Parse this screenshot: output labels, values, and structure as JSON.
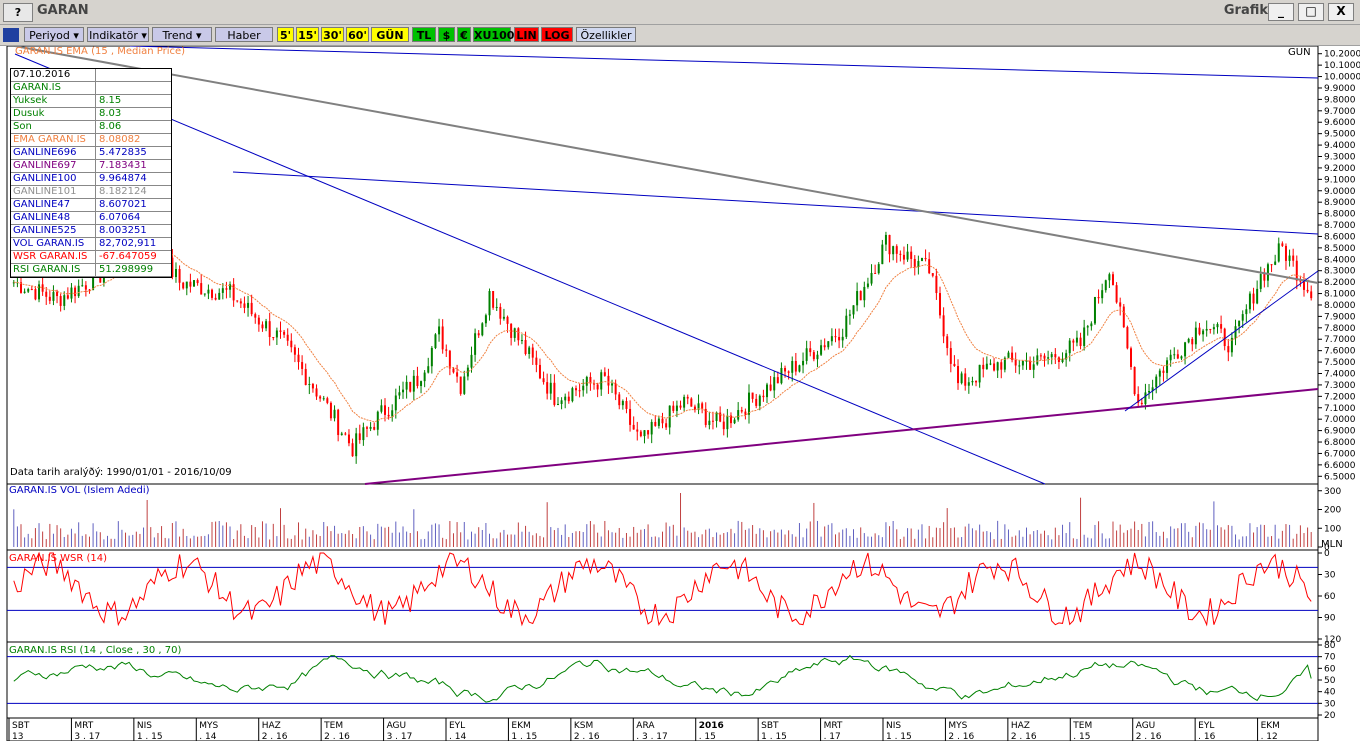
{
  "window": {
    "help_label": "?",
    "title": "GARAN",
    "right_label": "Grafik",
    "minimize": "_",
    "maximize": "□",
    "close": "X"
  },
  "toolbar": {
    "periyod": "Periyod ▾",
    "indikator": "Indikatör ▾",
    "trend": "Trend ▾",
    "haber": "Haber",
    "p5": "5'",
    "p15": "15'",
    "p30": "30'",
    "p60": "60'",
    "gun": "GÜN",
    "tl": "TL",
    "usd": "$",
    "eur": "€",
    "xu100": "XU100",
    "lin": "LIN",
    "log": "LOG",
    "ozellikler": "Özellikler"
  },
  "main": {
    "title": "GARAN.IS EMA (15 , Median Price)",
    "period_label": "GUN",
    "date_range": "Data tarih aralýðý: 1990/01/01 - 2016/10/09",
    "info": [
      {
        "k": "07.10.2016",
        "v": "",
        "color": "#000000"
      },
      {
        "k": "GARAN.IS",
        "v": "",
        "color": "#008000"
      },
      {
        "k": " Yuksek",
        "v": "8.15",
        "color": "#008000"
      },
      {
        "k": " Dusuk",
        "v": "8.03",
        "color": "#008000"
      },
      {
        "k": " Son",
        "v": "8.06",
        "color": "#008000"
      },
      {
        "k": "EMA GARAN.IS",
        "v": "8.08082",
        "color": "#f08040"
      },
      {
        "k": "GANLINE696",
        "v": "5.472835",
        "color": "#0000c0"
      },
      {
        "k": "GANLINE697",
        "v": "7.183431",
        "color": "#800080"
      },
      {
        "k": "GANLINE100",
        "v": "9.964874",
        "color": "#0000c0"
      },
      {
        "k": "GANLINE101",
        "v": "8.182124",
        "color": "#909090"
      },
      {
        "k": "GANLINE47",
        "v": "8.607021",
        "color": "#0000c0"
      },
      {
        "k": "GANLINE48",
        "v": "6.07064",
        "color": "#0000c0"
      },
      {
        "k": "GANLINE525",
        "v": "8.003251",
        "color": "#0000c0"
      },
      {
        "k": "VOL GARAN.IS",
        "v": "82,702,911",
        "color": "#0000c0"
      },
      {
        "k": "WSR GARAN.IS",
        "v": "-67.647059",
        "color": "#ff0000"
      },
      {
        "k": "RSI GARAN.IS",
        "v": "51.298999",
        "color": "#008000"
      }
    ]
  },
  "vol_title": "GARAN.IS VOL (Islem Adedi)",
  "vol_unit": "MLN",
  "wsr_title": "GARAN.IS WSR (14)",
  "rsi_title": "GARAN.IS RSI (14 , Close , 30 , 70)",
  "colors": {
    "up": "#008000",
    "down": "#ff0000",
    "ema": "#f08040",
    "gan_blue": "#0000c0",
    "gan_purple": "#800080",
    "gan_gray": "#808080",
    "vol_bar": "#6060c0"
  },
  "chart_data": [
    {
      "type": "candlestick",
      "title": "GARAN.IS EMA (15 , Median Price)",
      "ylim": [
        6.45,
        10.25
      ],
      "y_ticks": [
        "10.2000",
        "10.1000",
        "10.0000",
        "9.9000",
        "9.8000",
        "9.7000",
        "9.6000",
        "9.5000",
        "9.4000",
        "9.3000",
        "9.2000",
        "9.1000",
        "9.0000",
        "8.9000",
        "8.8000",
        "8.7000",
        "8.6000",
        "8.5000",
        "8.4000",
        "8.3000",
        "8.2000",
        "8.1000",
        "8.0000",
        "7.9000",
        "7.8000",
        "7.7000",
        "7.6000",
        "7.5000",
        "7.4000",
        "7.3000",
        "7.2000",
        "7.1000",
        "7.0000",
        "6.9000",
        "6.8000",
        "6.7000",
        "6.6000",
        "6.5000"
      ],
      "close_anchors": [
        [
          0,
          8.2
        ],
        [
          12,
          8.05
        ],
        [
          26,
          8.3
        ],
        [
          34,
          8.75
        ],
        [
          46,
          8.2
        ],
        [
          60,
          8.1
        ],
        [
          74,
          7.7
        ],
        [
          84,
          7.25
        ],
        [
          94,
          6.75
        ],
        [
          102,
          7.05
        ],
        [
          112,
          7.35
        ],
        [
          118,
          7.75
        ],
        [
          124,
          7.3
        ],
        [
          132,
          8.1
        ],
        [
          140,
          7.7
        ],
        [
          150,
          7.2
        ],
        [
          164,
          7.35
        ],
        [
          174,
          6.8
        ],
        [
          186,
          7.15
        ],
        [
          196,
          6.95
        ],
        [
          210,
          7.3
        ],
        [
          230,
          7.8
        ],
        [
          242,
          8.55
        ],
        [
          254,
          8.3
        ],
        [
          262,
          7.3
        ],
        [
          274,
          7.5
        ],
        [
          284,
          7.5
        ],
        [
          296,
          7.65
        ],
        [
          304,
          8.35
        ],
        [
          312,
          7.15
        ],
        [
          320,
          7.5
        ],
        [
          330,
          7.85
        ],
        [
          338,
          7.65
        ],
        [
          346,
          8.25
        ],
        [
          352,
          8.5
        ],
        [
          360,
          8.1
        ]
      ],
      "last_close": 8.06,
      "ema_last": 8.08082,
      "n_bars": 361
    },
    {
      "type": "bar",
      "title": "GARAN.IS VOL (Islem Adedi)",
      "y_ticks": [
        "300",
        "200",
        "100",
        "0"
      ],
      "ylim": [
        0,
        320
      ],
      "last": 82.702911
    },
    {
      "type": "line",
      "title": "GARAN.IS WSR (14)",
      "y_ticks": [
        "0",
        "30",
        "60",
        "90",
        "120"
      ],
      "ylim": [
        -120,
        0
      ],
      "ref_lines": [
        -20,
        -80
      ],
      "last": -67.647059
    },
    {
      "type": "line",
      "title": "GARAN.IS RSI (14 , Close , 30 , 70)",
      "y_ticks": [
        "80",
        "70",
        "60",
        "50",
        "40",
        "30",
        "20"
      ],
      "ylim": [
        20,
        80
      ],
      "ref_lines": [
        30,
        70
      ],
      "last": 51.298999
    },
    {
      "type": "axis",
      "x_ticks": [
        {
          "m": "SBT",
          "d": "13"
        },
        {
          "m": "MRT",
          "d": "3 . 17"
        },
        {
          "m": "NIS",
          "d": "1 . 15"
        },
        {
          "m": "MYS",
          "d": ". 14"
        },
        {
          "m": "HAZ",
          "d": "2 . 16"
        },
        {
          "m": "TEM",
          "d": "2 . 16"
        },
        {
          "m": "AGU",
          "d": "3 . 17"
        },
        {
          "m": "EYL",
          "d": ". 14"
        },
        {
          "m": "EKM",
          "d": "1 . 15"
        },
        {
          "m": "KSM",
          "d": "2 . 16"
        },
        {
          "m": "ARA",
          "d": ". 3 . 17"
        },
        {
          "m": "2016",
          "d": ". 15"
        },
        {
          "m": "SBT",
          "d": "1 . 15"
        },
        {
          "m": "MRT",
          "d": ". 17"
        },
        {
          "m": "NIS",
          "d": "1 . 15"
        },
        {
          "m": "MYS",
          "d": "2 . 16"
        },
        {
          "m": "HAZ",
          "d": "2 . 16"
        },
        {
          "m": "TEM",
          "d": ". 15"
        },
        {
          "m": "AGU",
          "d": "2 . 16"
        },
        {
          "m": "EYL",
          "d": ". 16"
        },
        {
          "m": "EKM",
          "d": ". 12"
        }
      ]
    }
  ]
}
